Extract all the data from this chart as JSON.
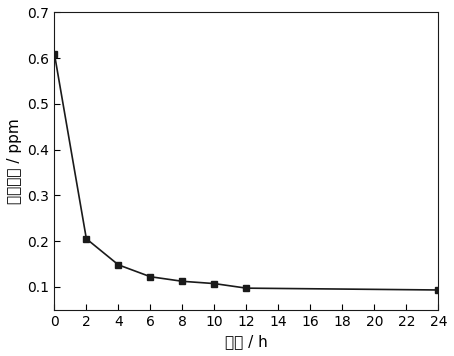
{
  "x": [
    0,
    2,
    4,
    6,
    8,
    10,
    12,
    24
  ],
  "y": [
    0.61,
    0.205,
    0.148,
    0.122,
    0.112,
    0.107,
    0.097,
    0.093
  ],
  "xlabel": "时间 / h",
  "ylabel": "甲醒浓度 / ppm",
  "xlim": [
    0,
    24
  ],
  "ylim": [
    0.05,
    0.7
  ],
  "yticks": [
    0.1,
    0.2,
    0.3,
    0.4,
    0.5,
    0.6,
    0.7
  ],
  "xticks": [
    0,
    2,
    4,
    6,
    8,
    10,
    12,
    14,
    16,
    18,
    20,
    22,
    24
  ],
  "line_color": "#1a1a1a",
  "marker": "s",
  "marker_color": "#1a1a1a",
  "marker_size": 5,
  "line_width": 1.2,
  "background_color": "#ffffff",
  "xlabel_fontsize": 11,
  "ylabel_fontsize": 11,
  "tick_fontsize": 10
}
